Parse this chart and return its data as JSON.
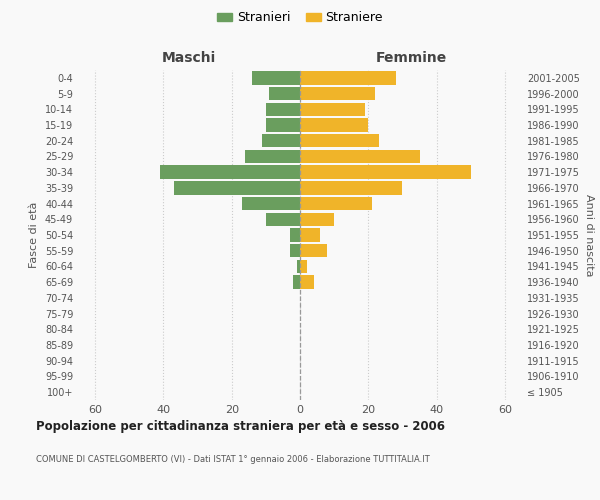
{
  "age_groups": [
    "100+",
    "95-99",
    "90-94",
    "85-89",
    "80-84",
    "75-79",
    "70-74",
    "65-69",
    "60-64",
    "55-59",
    "50-54",
    "45-49",
    "40-44",
    "35-39",
    "30-34",
    "25-29",
    "20-24",
    "15-19",
    "10-14",
    "5-9",
    "0-4"
  ],
  "birth_years": [
    "≤ 1905",
    "1906-1910",
    "1911-1915",
    "1916-1920",
    "1921-1925",
    "1926-1930",
    "1931-1935",
    "1936-1940",
    "1941-1945",
    "1946-1950",
    "1951-1955",
    "1956-1960",
    "1961-1965",
    "1966-1970",
    "1971-1975",
    "1976-1980",
    "1981-1985",
    "1986-1990",
    "1991-1995",
    "1996-2000",
    "2001-2005"
  ],
  "males": [
    0,
    0,
    0,
    0,
    0,
    0,
    0,
    2,
    1,
    3,
    3,
    10,
    17,
    37,
    41,
    16,
    11,
    10,
    10,
    9,
    14
  ],
  "females": [
    0,
    0,
    0,
    0,
    0,
    0,
    0,
    4,
    2,
    8,
    6,
    10,
    21,
    30,
    50,
    35,
    23,
    20,
    19,
    22,
    28
  ],
  "male_color": "#6a9e5e",
  "female_color": "#f0b429",
  "background_color": "#f9f9f9",
  "grid_color": "#cccccc",
  "bar_height": 0.85,
  "xlim": 65,
  "title": "Popolazione per cittadinanza straniera per età e sesso - 2006",
  "subtitle": "COMUNE DI CASTELGOMBERTO (VI) - Dati ISTAT 1° gennaio 2006 - Elaborazione TUTTITALIA.IT",
  "legend_labels": [
    "Stranieri",
    "Straniere"
  ],
  "header_left": "Maschi",
  "header_right": "Femmine",
  "ylabel_left": "Fasce di età",
  "ylabel_right": "Anni di nascita"
}
